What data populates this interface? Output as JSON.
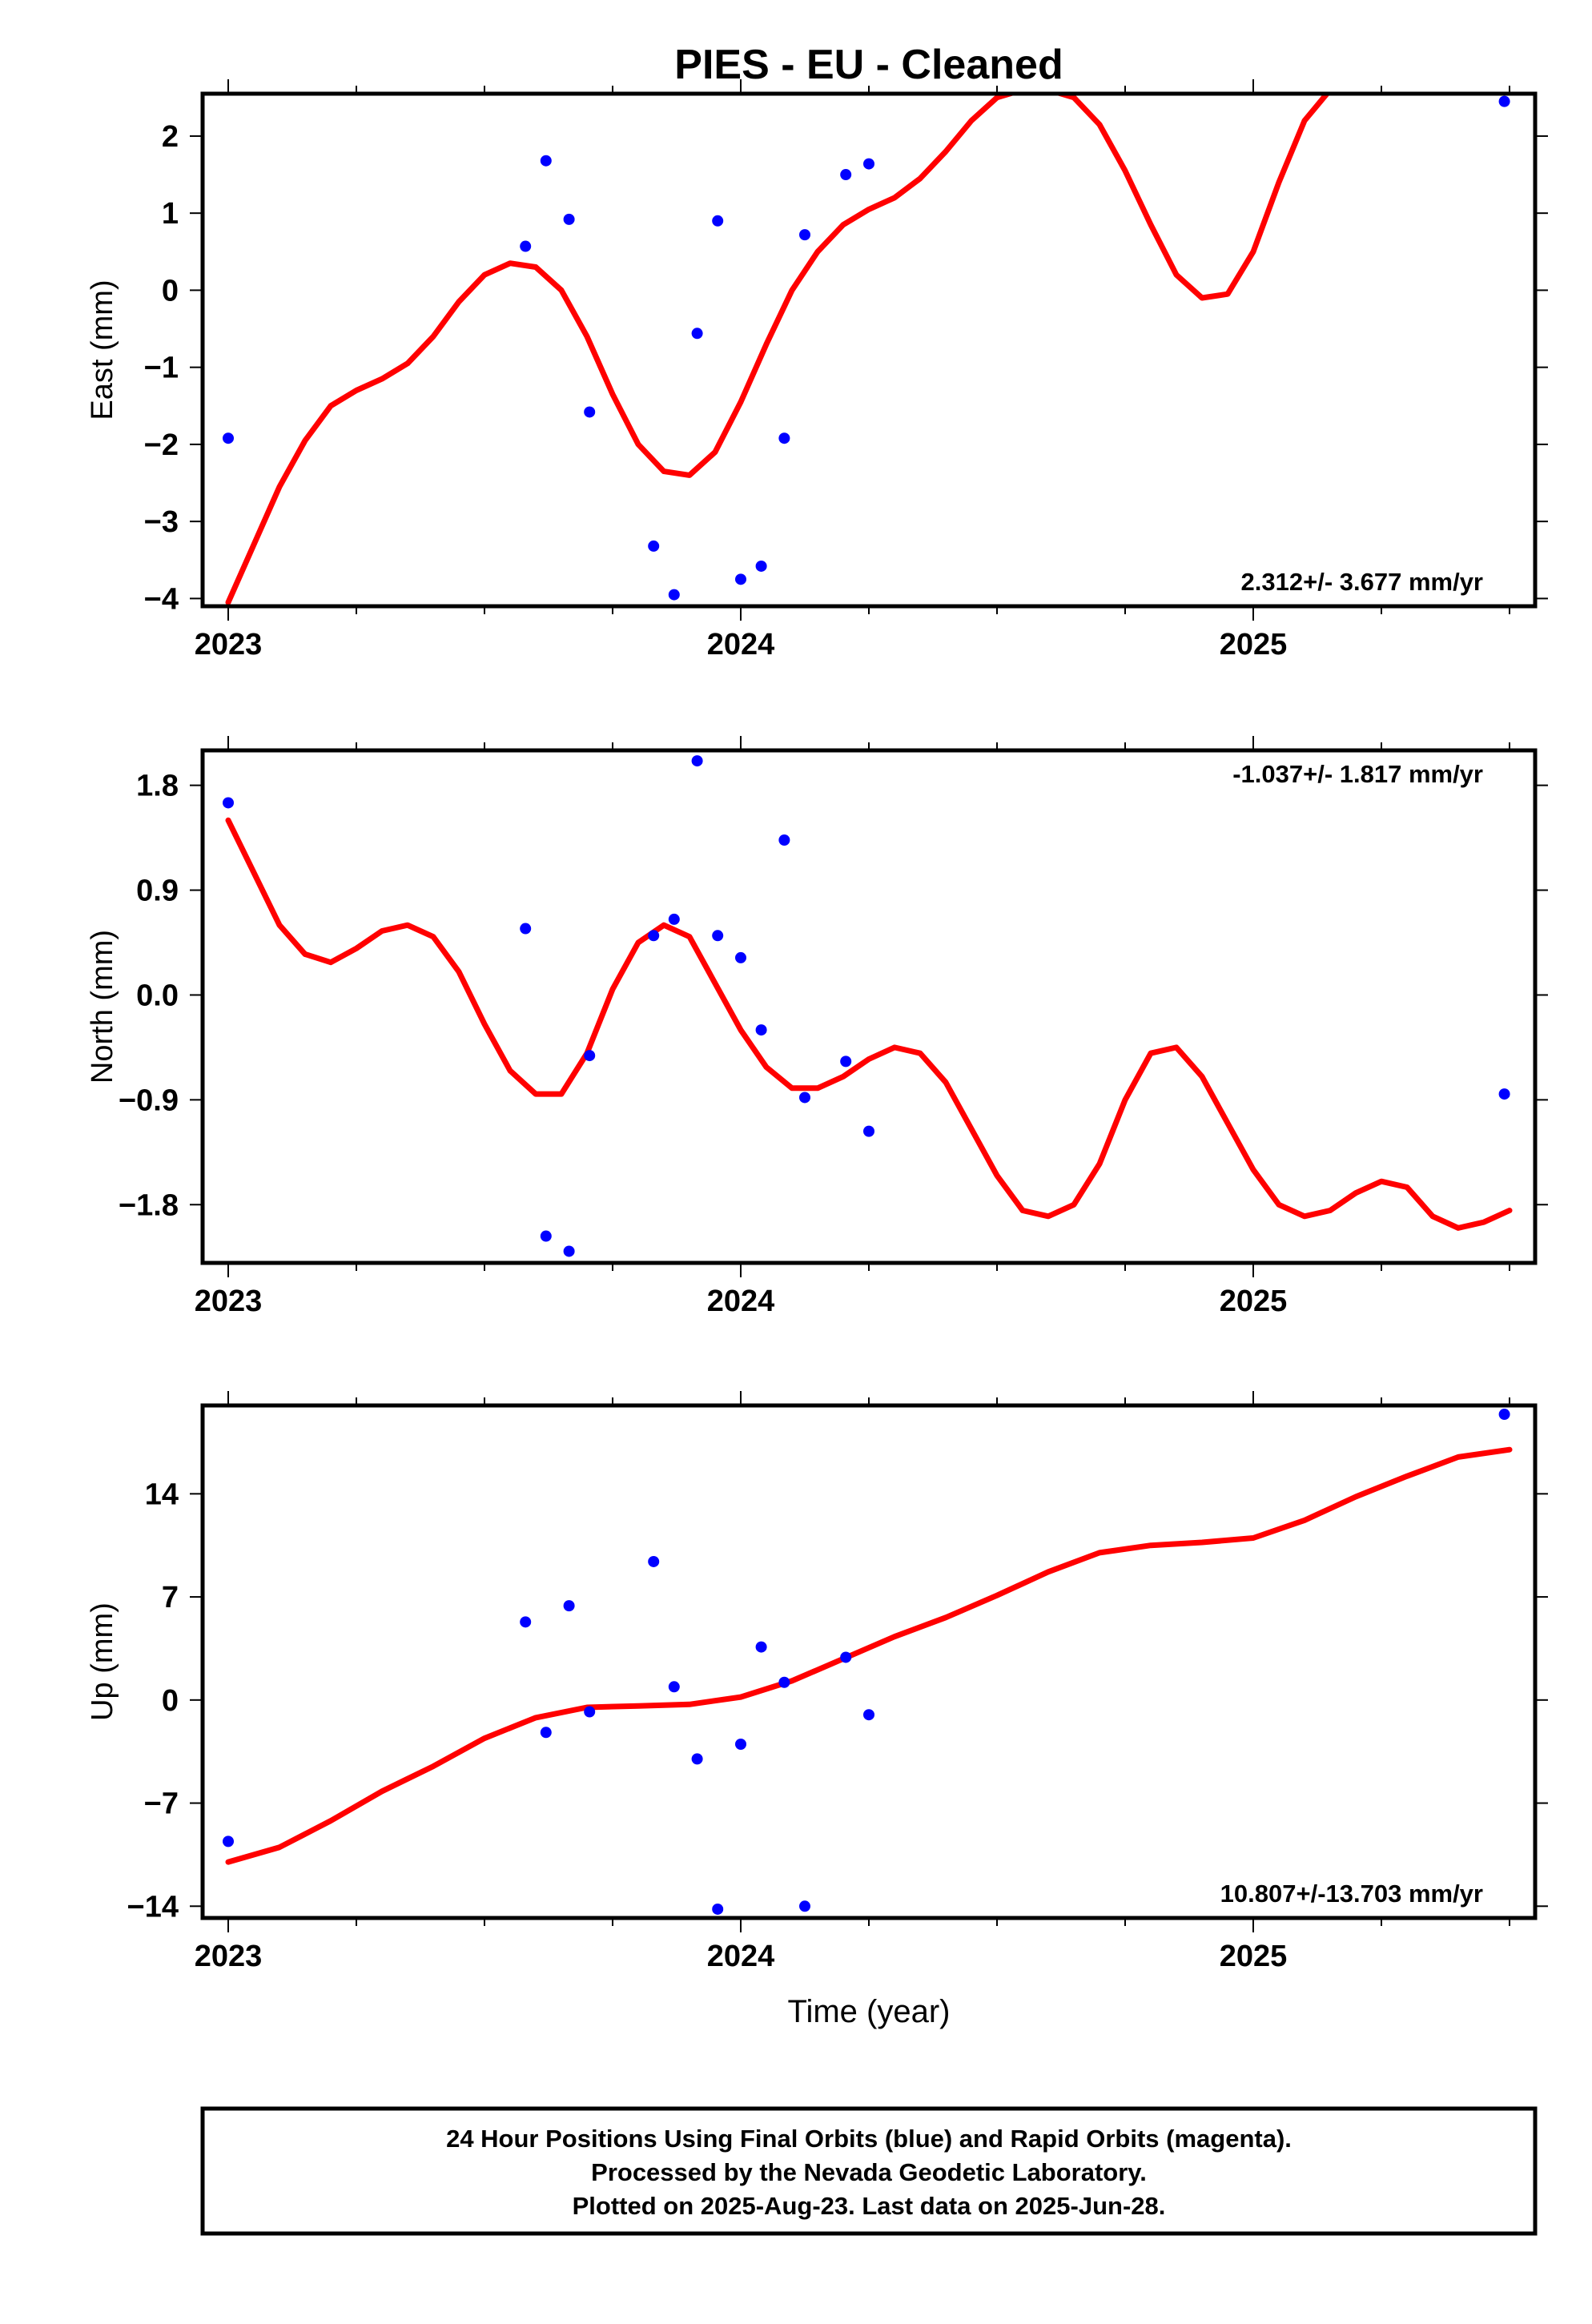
{
  "chart_data": {
    "type": "scatter",
    "title": "PIES  - EU - Cleaned",
    "xlabel": "Time (year)",
    "x_ticks": [
      "2023",
      "2024",
      "2025"
    ],
    "xlim": [
      2022.95,
      2025.55
    ],
    "colors": {
      "final_orbits": "#0000ff",
      "fit": "#ff0000",
      "frame": "#000000"
    },
    "panels": [
      {
        "component": "east",
        "ylabel": "East (mm)",
        "ylim": [
          -4.1,
          2.55
        ],
        "y_ticks": [
          "2",
          "1",
          "0",
          "−1",
          "−2",
          "−3",
          "−4"
        ],
        "y_tick_values": [
          2,
          1,
          0,
          -1,
          -2,
          -3,
          -4
        ],
        "rate_label": "2.312+/- 3.677 mm/yr",
        "rate_position": "bottom-right",
        "points": {
          "x": [
            2023.0,
            2023.58,
            2023.62,
            2023.665,
            2023.705,
            2023.83,
            2023.87,
            2023.915,
            2023.955,
            2024.0,
            2024.04,
            2024.085,
            2024.125,
            2024.205,
            2024.25,
            2025.49
          ],
          "y": [
            -1.92,
            0.57,
            1.68,
            0.92,
            -1.58,
            -3.32,
            -3.95,
            -0.56,
            0.9,
            -3.75,
            -3.58,
            -1.92,
            0.72,
            1.5,
            1.64,
            2.45
          ]
        },
        "fit": {
          "x": [
            2023.0,
            2023.05,
            2023.1,
            2023.15,
            2023.2,
            2023.25,
            2023.3,
            2023.35,
            2023.4,
            2023.45,
            2023.5,
            2023.55,
            2023.6,
            2023.65,
            2023.7,
            2023.75,
            2023.8,
            2023.85,
            2023.9,
            2023.95,
            2024.0,
            2024.05,
            2024.1,
            2024.15,
            2024.2,
            2024.25,
            2024.3,
            2024.35,
            2024.4,
            2024.45,
            2024.5,
            2024.55,
            2024.6,
            2024.65,
            2024.7,
            2024.75,
            2024.8,
            2024.85,
            2024.9,
            2024.95,
            2025.0,
            2025.05,
            2025.1,
            2025.15
          ],
          "y": [
            -4.05,
            -3.3,
            -2.55,
            -1.95,
            -1.5,
            -1.3,
            -1.15,
            -0.95,
            -0.6,
            -0.15,
            0.2,
            0.35,
            0.3,
            0.0,
            -0.6,
            -1.35,
            -2.0,
            -2.35,
            -2.4,
            -2.1,
            -1.45,
            -0.7,
            0.0,
            0.5,
            0.85,
            1.05,
            1.2,
            1.45,
            1.8,
            2.2,
            2.5,
            2.6,
            2.6,
            2.5,
            2.15,
            1.55,
            0.85,
            0.2,
            -0.1,
            -0.05,
            0.5,
            1.4,
            2.2,
            2.6
          ]
        }
      },
      {
        "component": "north",
        "ylabel": "North (mm)",
        "ylim": [
          -2.3,
          2.1
        ],
        "y_ticks": [
          "1.8",
          "0.9",
          "0.0",
          "−0.9",
          "−1.8"
        ],
        "y_tick_values": [
          1.8,
          0.9,
          0.0,
          -0.9,
          -1.8
        ],
        "rate_label": "-1.037+/- 1.817 mm/yr",
        "rate_position": "top-right",
        "points": {
          "x": [
            2023.0,
            2023.58,
            2023.62,
            2023.665,
            2023.705,
            2023.83,
            2023.87,
            2023.915,
            2023.955,
            2024.0,
            2024.04,
            2024.085,
            2024.125,
            2024.205,
            2024.25,
            2025.49
          ],
          "y": [
            1.65,
            0.57,
            -2.07,
            -2.2,
            -0.52,
            0.51,
            0.65,
            2.01,
            0.51,
            0.32,
            -0.3,
            1.33,
            -0.88,
            -0.57,
            -1.17,
            -0.85
          ]
        },
        "fit": {
          "x": [
            2023.0,
            2023.05,
            2023.1,
            2023.15,
            2023.2,
            2023.25,
            2023.3,
            2023.35,
            2023.4,
            2023.45,
            2023.5,
            2023.55,
            2023.6,
            2023.65,
            2023.7,
            2023.75,
            2023.8,
            2023.85,
            2023.9,
            2023.95,
            2024.0,
            2024.05,
            2024.1,
            2024.15,
            2024.2,
            2024.25,
            2024.3,
            2024.35,
            2024.4,
            2024.45,
            2024.5,
            2024.55,
            2024.6,
            2024.65,
            2024.7,
            2024.75,
            2024.8,
            2024.85,
            2024.9,
            2024.95,
            2025.0,
            2025.05,
            2025.1,
            2025.15,
            2025.2,
            2025.25,
            2025.3,
            2025.35,
            2025.4,
            2025.45,
            2025.5
          ],
          "y": [
            1.5,
            1.05,
            0.6,
            0.35,
            0.28,
            0.4,
            0.55,
            0.6,
            0.5,
            0.2,
            -0.25,
            -0.65,
            -0.85,
            -0.85,
            -0.5,
            0.05,
            0.45,
            0.6,
            0.5,
            0.1,
            -0.3,
            -0.62,
            -0.8,
            -0.8,
            -0.7,
            -0.55,
            -0.45,
            -0.5,
            -0.75,
            -1.15,
            -1.55,
            -1.85,
            -1.9,
            -1.8,
            -1.45,
            -0.9,
            -0.5,
            -0.45,
            -0.7,
            -1.1,
            -1.5,
            -1.8,
            -1.9,
            -1.85,
            -1.7,
            -1.6,
            -1.65,
            -1.9,
            -2.0,
            -1.95,
            -1.85
          ]
        }
      },
      {
        "component": "up",
        "ylabel": "Up (mm)",
        "ylim": [
          -14.8,
          20.0
        ],
        "y_ticks": [
          "14",
          "7",
          "0",
          "−7",
          "−14"
        ],
        "y_tick_values": [
          14,
          7,
          0,
          -7,
          -14
        ],
        "rate_label": "10.807+/-13.703 mm/yr",
        "rate_position": "bottom-right",
        "points": {
          "x": [
            2023.0,
            2023.58,
            2023.62,
            2023.665,
            2023.705,
            2023.83,
            2023.87,
            2023.915,
            2023.955,
            2024.0,
            2024.04,
            2024.085,
            2024.125,
            2024.205,
            2024.25,
            2025.49
          ],
          "y": [
            -9.6,
            5.3,
            -2.2,
            6.4,
            -0.8,
            9.4,
            0.9,
            -4.0,
            -14.2,
            -3.0,
            3.6,
            1.2,
            -14.0,
            2.9,
            -1.0,
            19.4
          ]
        },
        "fit": {
          "x": [
            2023.0,
            2023.1,
            2023.2,
            2023.3,
            2023.4,
            2023.5,
            2023.6,
            2023.7,
            2023.8,
            2023.9,
            2024.0,
            2024.1,
            2024.2,
            2024.3,
            2024.4,
            2024.5,
            2024.6,
            2024.7,
            2024.8,
            2024.9,
            2025.0,
            2025.1,
            2025.2,
            2025.3,
            2025.4,
            2025.5
          ],
          "y": [
            -11.0,
            -10.0,
            -8.2,
            -6.2,
            -4.5,
            -2.6,
            -1.2,
            -0.5,
            -0.4,
            -0.3,
            0.2,
            1.3,
            2.8,
            4.3,
            5.6,
            7.1,
            8.7,
            10.0,
            10.5,
            10.7,
            11.0,
            12.2,
            13.8,
            15.2,
            16.5,
            17.0
          ]
        }
      }
    ]
  },
  "footer": {
    "line1": "24 Hour Positions Using Final Orbits (blue) and Rapid Orbits (magenta).",
    "line2": "Processed by the Nevada Geodetic Laboratory.",
    "line3": "Plotted on 2025-Aug-23. Last data on 2025-Jun-28."
  }
}
